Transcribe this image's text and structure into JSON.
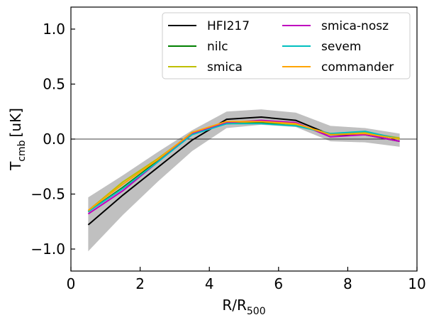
{
  "chart_data": {
    "type": "line",
    "title": "",
    "xlabel": {
      "main": "R/R",
      "sub": "500"
    },
    "ylabel": {
      "main": "T",
      "sub": "cmb",
      "unit": "[uK]"
    },
    "xlim": [
      0,
      10
    ],
    "ylim": [
      -1.2,
      1.2
    ],
    "xticks": [
      0,
      2,
      4,
      6,
      8,
      10
    ],
    "xtick_labels": [
      "0",
      "2",
      "4",
      "6",
      "8",
      "10"
    ],
    "yticks": [
      -1.0,
      -0.5,
      0.0,
      0.5,
      1.0
    ],
    "ytick_labels": [
      "−1.0",
      "−0.5",
      "0.0",
      "0.5",
      "1.0"
    ],
    "zero_line": 0.0,
    "x": [
      0.5,
      1.5,
      2.5,
      3.5,
      4.5,
      5.5,
      6.5,
      7.5,
      8.5,
      9.5
    ],
    "band": {
      "name": "uncertainty",
      "color": "#c0c0c0",
      "lower": [
        -1.02,
        -0.69,
        -0.39,
        -0.11,
        0.1,
        0.13,
        0.11,
        -0.02,
        -0.03,
        -0.07
      ],
      "upper": [
        -0.53,
        -0.33,
        -0.12,
        0.08,
        0.25,
        0.27,
        0.24,
        0.12,
        0.1,
        0.05
      ]
    },
    "series": [
      {
        "name": "HFI217",
        "color": "#000000",
        "values": [
          -0.78,
          -0.51,
          -0.26,
          -0.01,
          0.18,
          0.2,
          0.17,
          0.04,
          0.04,
          -0.02
        ]
      },
      {
        "name": "nilc",
        "color": "#008000",
        "values": [
          -0.66,
          -0.44,
          -0.2,
          0.06,
          0.14,
          0.15,
          0.13,
          0.04,
          0.05,
          0.0
        ]
      },
      {
        "name": "smica",
        "color": "#bfbf00",
        "values": [
          -0.65,
          -0.39,
          -0.18,
          0.05,
          0.15,
          0.16,
          0.13,
          0.05,
          0.06,
          0.01
        ]
      },
      {
        "name": "smica-nosz",
        "color": "#bf00bf",
        "values": [
          -0.68,
          -0.47,
          -0.21,
          0.05,
          0.15,
          0.17,
          0.15,
          0.02,
          0.04,
          -0.02
        ]
      },
      {
        "name": "sevem",
        "color": "#00bfbf",
        "values": [
          -0.66,
          -0.45,
          -0.21,
          0.04,
          0.14,
          0.14,
          0.12,
          0.05,
          0.07,
          0.0
        ]
      },
      {
        "name": "commander",
        "color": "#ffa500",
        "values": [
          -0.65,
          -0.41,
          -0.19,
          0.06,
          0.16,
          0.16,
          0.14,
          0.04,
          0.05,
          0.0
        ]
      }
    ],
    "legend": {
      "placement": "top-right",
      "columns": [
        [
          "HFI217",
          "nilc",
          "smica"
        ],
        [
          "smica-nosz",
          "sevem",
          "commander"
        ]
      ]
    },
    "grid": false
  }
}
